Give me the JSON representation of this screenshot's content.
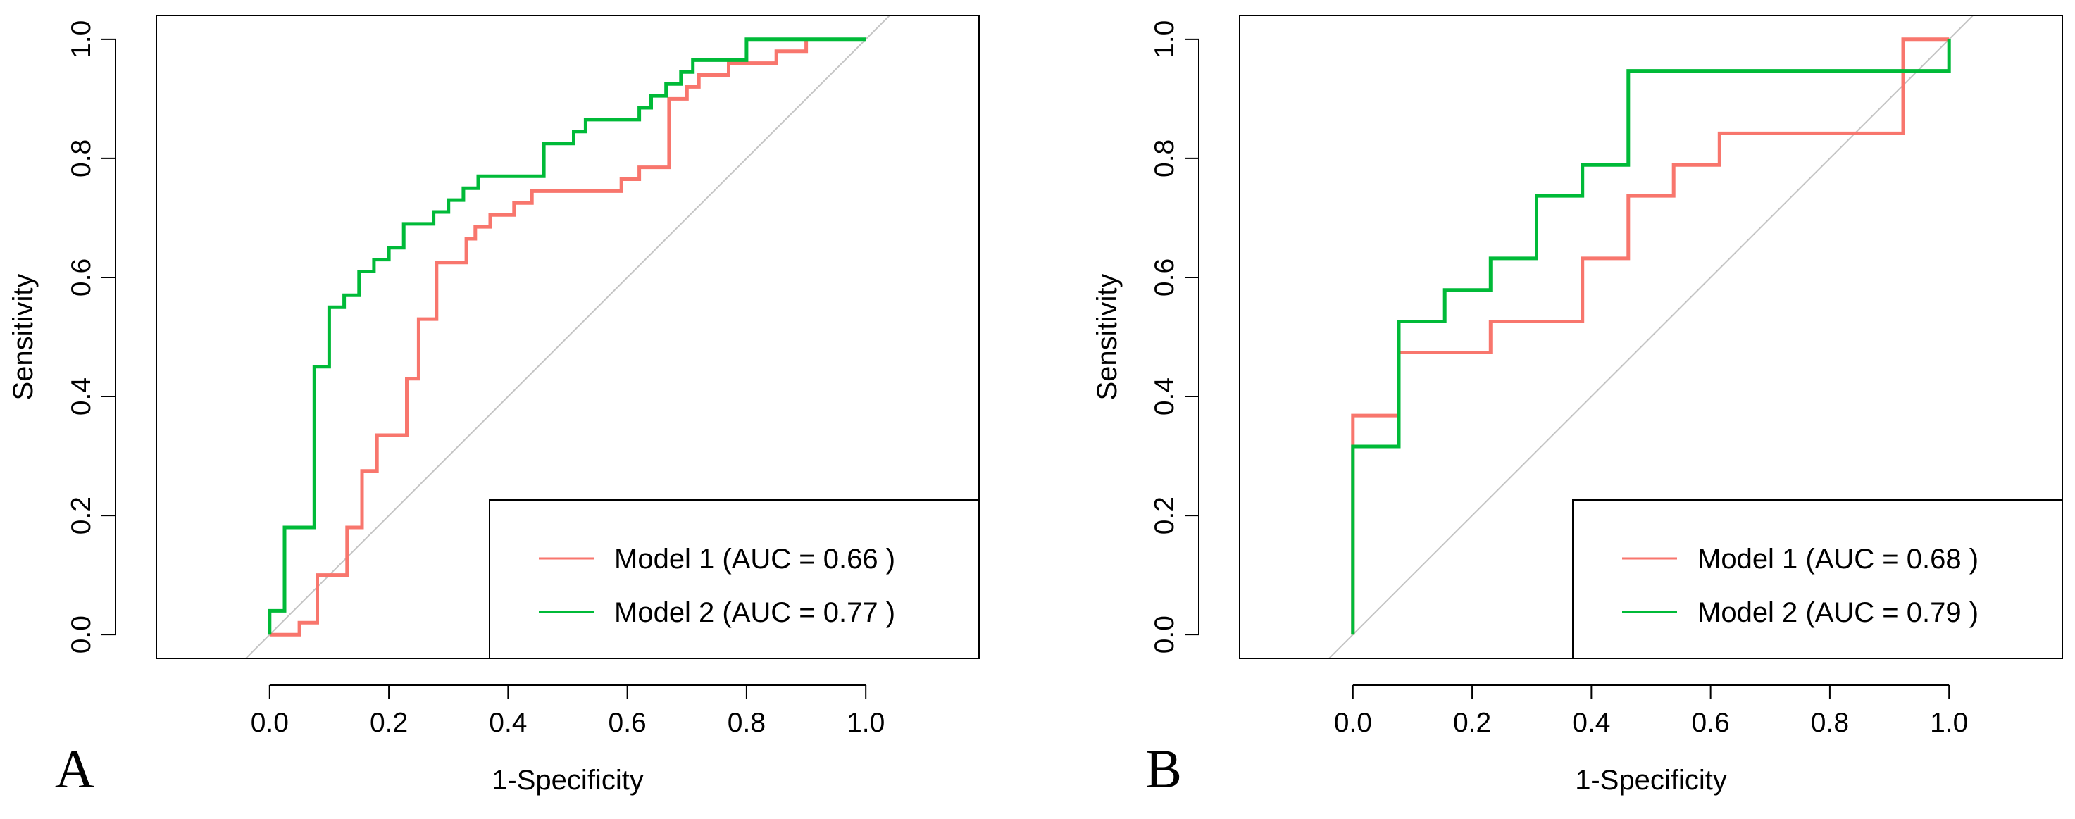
{
  "chart_data": [
    {
      "type": "line",
      "panel_label": "A",
      "xlabel": "1-Specificity",
      "ylabel": "Sensitivity",
      "xlim": [
        -0.19,
        1.19
      ],
      "ylim": [
        -0.04,
        1.04
      ],
      "x_ticks": [
        0.0,
        0.2,
        0.4,
        0.6,
        0.8,
        1.0
      ],
      "x_tick_labels": [
        "0.0",
        "0.2",
        "0.4",
        "0.6",
        "0.8",
        "1.0"
      ],
      "y_ticks": [
        0.0,
        0.2,
        0.4,
        0.6,
        0.8,
        1.0
      ],
      "y_tick_labels": [
        "0.0",
        "0.2",
        "0.4",
        "0.6",
        "0.8",
        "1.0"
      ],
      "grid": false,
      "reference_line": true,
      "legend_position": "bottom-right",
      "series": [
        {
          "name": "Model 1",
          "legend_label": "Model 1 (AUC = 0.66 )",
          "auc": 0.66,
          "color": "#F8766D",
          "points": [
            [
              0,
              0
            ],
            [
              0.05,
              0
            ],
            [
              0.05,
              0.02
            ],
            [
              0.08,
              0.02
            ],
            [
              0.08,
              0.1
            ],
            [
              0.13,
              0.1
            ],
            [
              0.13,
              0.18
            ],
            [
              0.155,
              0.18
            ],
            [
              0.155,
              0.275
            ],
            [
              0.18,
              0.275
            ],
            [
              0.18,
              0.335
            ],
            [
              0.23,
              0.335
            ],
            [
              0.23,
              0.43
            ],
            [
              0.25,
              0.43
            ],
            [
              0.25,
              0.53
            ],
            [
              0.28,
              0.53
            ],
            [
              0.28,
              0.625
            ],
            [
              0.33,
              0.625
            ],
            [
              0.33,
              0.665
            ],
            [
              0.345,
              0.665
            ],
            [
              0.345,
              0.685
            ],
            [
              0.37,
              0.685
            ],
            [
              0.37,
              0.705
            ],
            [
              0.41,
              0.705
            ],
            [
              0.41,
              0.725
            ],
            [
              0.44,
              0.725
            ],
            [
              0.44,
              0.745
            ],
            [
              0.59,
              0.745
            ],
            [
              0.59,
              0.765
            ],
            [
              0.62,
              0.765
            ],
            [
              0.62,
              0.785
            ],
            [
              0.67,
              0.785
            ],
            [
              0.67,
              0.9
            ],
            [
              0.7,
              0.9
            ],
            [
              0.7,
              0.92
            ],
            [
              0.72,
              0.92
            ],
            [
              0.72,
              0.94
            ],
            [
              0.77,
              0.94
            ],
            [
              0.77,
              0.96
            ],
            [
              0.85,
              0.96
            ],
            [
              0.85,
              0.98
            ],
            [
              0.9,
              0.98
            ],
            [
              0.9,
              1.0
            ]
          ]
        },
        {
          "name": "Model 2",
          "legend_label": "Model 2 (AUC = 0.77 )",
          "auc": 0.77,
          "color": "#00BA38",
          "points": [
            [
              0,
              0
            ],
            [
              0,
              0.04
            ],
            [
              0.025,
              0.04
            ],
            [
              0.025,
              0.18
            ],
            [
              0.075,
              0.18
            ],
            [
              0.075,
              0.45
            ],
            [
              0.1,
              0.45
            ],
            [
              0.1,
              0.55
            ],
            [
              0.125,
              0.55
            ],
            [
              0.125,
              0.57
            ],
            [
              0.15,
              0.57
            ],
            [
              0.15,
              0.61
            ],
            [
              0.175,
              0.61
            ],
            [
              0.175,
              0.63
            ],
            [
              0.2,
              0.63
            ],
            [
              0.2,
              0.65
            ],
            [
              0.225,
              0.65
            ],
            [
              0.225,
              0.69
            ],
            [
              0.275,
              0.69
            ],
            [
              0.275,
              0.71
            ],
            [
              0.3,
              0.71
            ],
            [
              0.3,
              0.73
            ],
            [
              0.325,
              0.73
            ],
            [
              0.325,
              0.75
            ],
            [
              0.35,
              0.75
            ],
            [
              0.35,
              0.77
            ],
            [
              0.46,
              0.77
            ],
            [
              0.46,
              0.825
            ],
            [
              0.51,
              0.825
            ],
            [
              0.51,
              0.845
            ],
            [
              0.53,
              0.845
            ],
            [
              0.53,
              0.865
            ],
            [
              0.62,
              0.865
            ],
            [
              0.62,
              0.885
            ],
            [
              0.64,
              0.885
            ],
            [
              0.64,
              0.905
            ],
            [
              0.665,
              0.905
            ],
            [
              0.665,
              0.925
            ],
            [
              0.69,
              0.925
            ],
            [
              0.69,
              0.945
            ],
            [
              0.71,
              0.945
            ],
            [
              0.71,
              0.965
            ],
            [
              0.8,
              0.965
            ],
            [
              0.8,
              1.0
            ],
            [
              1.0,
              1.0
            ]
          ]
        }
      ]
    },
    {
      "type": "line",
      "panel_label": "B",
      "xlabel": "1-Specificity",
      "ylabel": "Sensitivity",
      "xlim": [
        -0.19,
        1.19
      ],
      "ylim": [
        -0.04,
        1.04
      ],
      "x_ticks": [
        0.0,
        0.2,
        0.4,
        0.6,
        0.8,
        1.0
      ],
      "x_tick_labels": [
        "0.0",
        "0.2",
        "0.4",
        "0.6",
        "0.8",
        "1.0"
      ],
      "y_ticks": [
        0.0,
        0.2,
        0.4,
        0.6,
        0.8,
        1.0
      ],
      "y_tick_labels": [
        "0.0",
        "0.2",
        "0.4",
        "0.6",
        "0.8",
        "1.0"
      ],
      "grid": false,
      "reference_line": true,
      "legend_position": "bottom-right",
      "series": [
        {
          "name": "Model 1",
          "legend_label": "Model 1 (AUC = 0.68 )",
          "auc": 0.68,
          "color": "#F8766D",
          "points": [
            [
              0,
              0
            ],
            [
              0,
              0.368
            ],
            [
              0.077,
              0.368
            ],
            [
              0.077,
              0.474
            ],
            [
              0.231,
              0.474
            ],
            [
              0.231,
              0.526
            ],
            [
              0.385,
              0.526
            ],
            [
              0.385,
              0.632
            ],
            [
              0.462,
              0.632
            ],
            [
              0.462,
              0.737
            ],
            [
              0.538,
              0.737
            ],
            [
              0.538,
              0.789
            ],
            [
              0.615,
              0.789
            ],
            [
              0.615,
              0.842
            ],
            [
              0.923,
              0.842
            ],
            [
              0.923,
              1.0
            ],
            [
              1.0,
              1.0
            ]
          ]
        },
        {
          "name": "Model 2",
          "legend_label": "Model 2 (AUC = 0.79 )",
          "auc": 0.79,
          "color": "#00BA38",
          "points": [
            [
              0,
              0
            ],
            [
              0,
              0.316
            ],
            [
              0.077,
              0.316
            ],
            [
              0.077,
              0.526
            ],
            [
              0.154,
              0.526
            ],
            [
              0.154,
              0.579
            ],
            [
              0.231,
              0.579
            ],
            [
              0.231,
              0.632
            ],
            [
              0.308,
              0.632
            ],
            [
              0.308,
              0.737
            ],
            [
              0.385,
              0.737
            ],
            [
              0.385,
              0.789
            ],
            [
              0.462,
              0.789
            ],
            [
              0.462,
              0.947
            ],
            [
              1.0,
              0.947
            ],
            [
              1.0,
              1.0
            ]
          ]
        }
      ]
    }
  ]
}
